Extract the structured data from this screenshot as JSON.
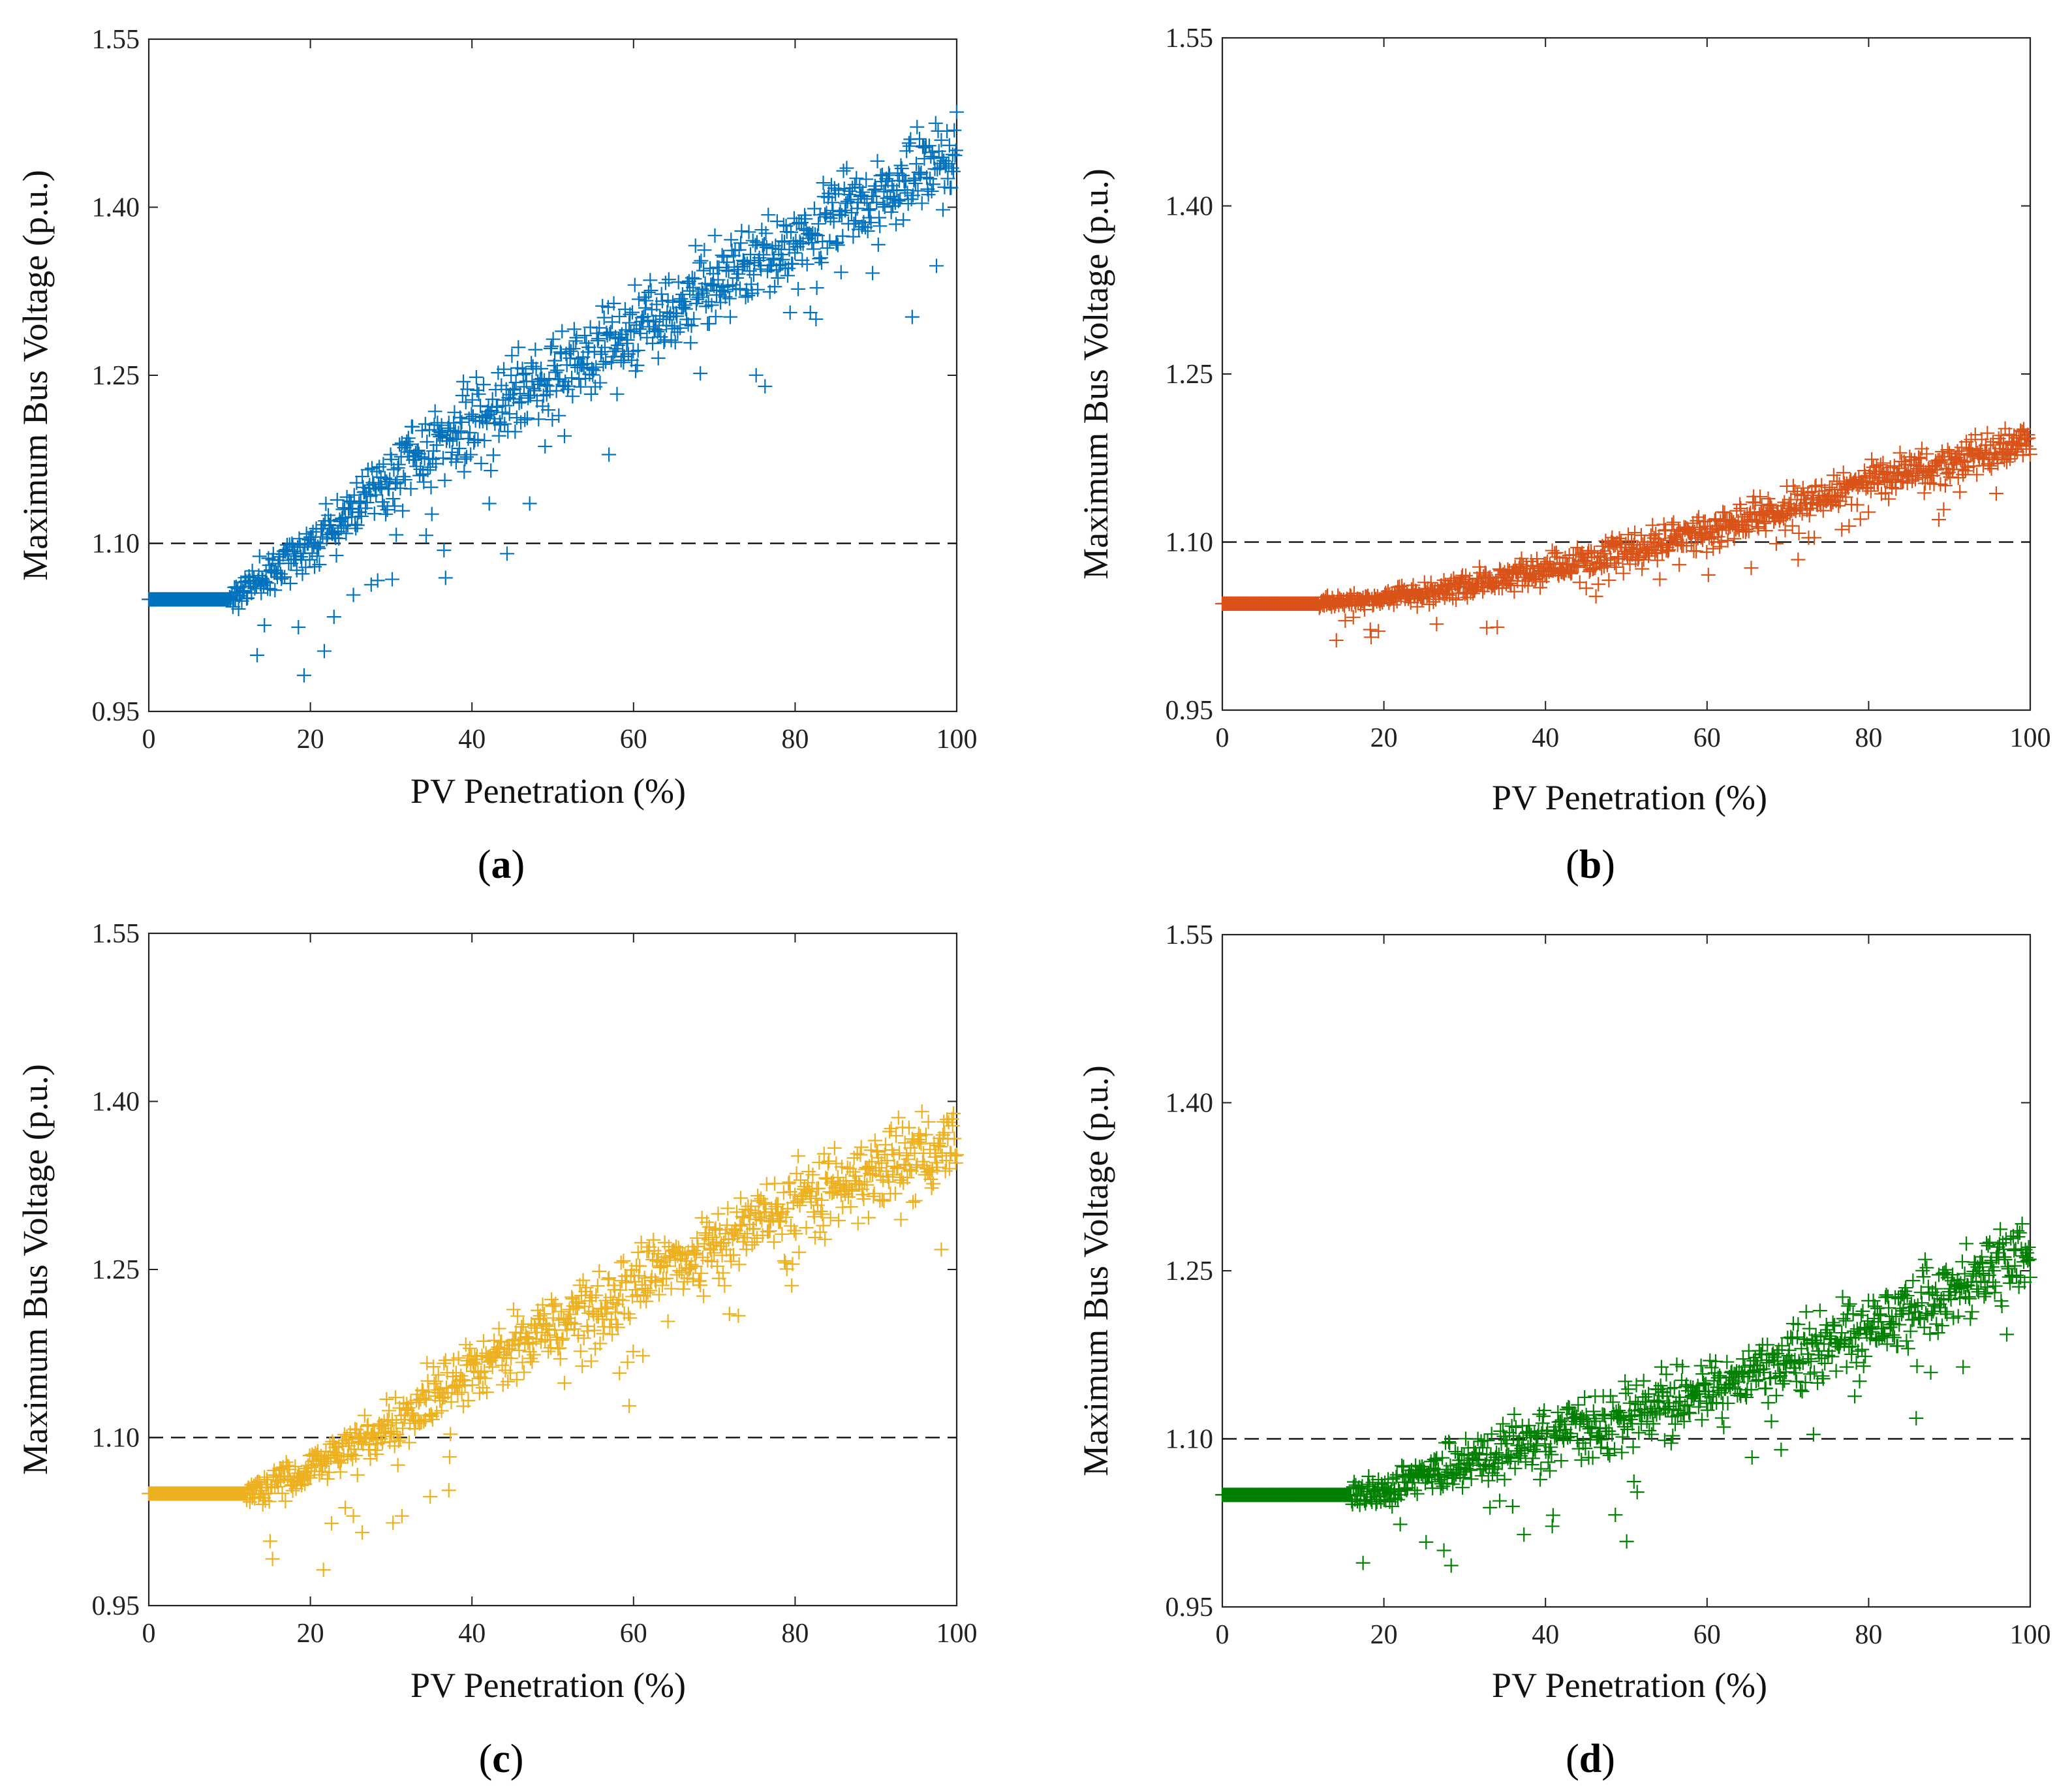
{
  "figure": {
    "panels": [
      "a",
      "b",
      "c",
      "d"
    ]
  },
  "chart_data": [
    {
      "id": "a",
      "type": "scatter",
      "caption_open": "(",
      "caption_letter": "a",
      "caption_close": ")",
      "xlabel": "PV Penetration (%)",
      "ylabel": "Maximum Bus Voltage (p.u.)",
      "xlim": [
        0,
        100
      ],
      "ylim": [
        0.95,
        1.55
      ],
      "xticks": [
        0,
        20,
        40,
        60,
        80,
        100
      ],
      "yticks": [
        0.95,
        1.1,
        1.25,
        1.4,
        1.55
      ],
      "xtick_labels": [
        "0",
        "20",
        "40",
        "60",
        "80",
        "100"
      ],
      "ytick_labels": [
        "0.95",
        "1.10",
        "1.25",
        "1.40",
        "1.55"
      ],
      "threshold": 1.1,
      "color": "#0072BD",
      "marker": "plus",
      "series_model": {
        "n_points": 1000,
        "base_voltage": 1.05,
        "onset_percent": 10,
        "points_at_100_percent": [
          1.39,
          1.5
        ],
        "mean_at_percent": [
          [
            10,
            1.05
          ],
          [
            20,
            1.1
          ],
          [
            30,
            1.16
          ],
          [
            40,
            1.21
          ],
          [
            50,
            1.25
          ],
          [
            60,
            1.29
          ],
          [
            70,
            1.33
          ],
          [
            80,
            1.37
          ],
          [
            90,
            1.41
          ],
          [
            100,
            1.45
          ]
        ],
        "spread": 0.035
      }
    },
    {
      "id": "b",
      "type": "scatter",
      "caption_open": "(",
      "caption_letter": "b",
      "caption_close": ")",
      "xlabel": "PV Penetration (%)",
      "ylabel": "Maximum Bus Voltage (p.u.)",
      "xlim": [
        0,
        100
      ],
      "ylim": [
        0.95,
        1.55
      ],
      "xticks": [
        0,
        20,
        40,
        60,
        80,
        100
      ],
      "yticks": [
        0.95,
        1.1,
        1.25,
        1.4,
        1.55
      ],
      "xtick_labels": [
        "0",
        "20",
        "40",
        "60",
        "80",
        "100"
      ],
      "ytick_labels": [
        "0.95",
        "1.10",
        "1.25",
        "1.40",
        "1.55"
      ],
      "threshold": 1.1,
      "color": "#D95319",
      "marker": "plus",
      "series_model": {
        "n_points": 1000,
        "base_voltage": 1.045,
        "onset_percent": 12,
        "mean_at_percent": [
          [
            12,
            1.045
          ],
          [
            20,
            1.05
          ],
          [
            30,
            1.06
          ],
          [
            40,
            1.075
          ],
          [
            50,
            1.095
          ],
          [
            60,
            1.11
          ],
          [
            70,
            1.13
          ],
          [
            80,
            1.155
          ],
          [
            90,
            1.17
          ],
          [
            100,
            1.19
          ]
        ],
        "spread": 0.014
      }
    },
    {
      "id": "c",
      "type": "scatter",
      "caption_open": "(",
      "caption_letter": "c",
      "caption_close": ")",
      "xlabel": "PV Penetration (%)",
      "ylabel": "Maximum Bus Voltage (p.u.)",
      "xlim": [
        0,
        100
      ],
      "ylim": [
        0.95,
        1.55
      ],
      "xticks": [
        0,
        20,
        40,
        60,
        80,
        100
      ],
      "yticks": [
        0.95,
        1.1,
        1.25,
        1.4,
        1.55
      ],
      "xtick_labels": [
        "0",
        "20",
        "40",
        "60",
        "80",
        "100"
      ],
      "ytick_labels": [
        "0.95",
        "1.10",
        "1.25",
        "1.40",
        "1.55"
      ],
      "threshold": 1.1,
      "color": "#EDB120",
      "marker": "plus",
      "series_model": {
        "n_points": 1000,
        "base_voltage": 1.05,
        "onset_percent": 12,
        "mean_at_percent": [
          [
            12,
            1.05
          ],
          [
            20,
            1.07
          ],
          [
            30,
            1.11
          ],
          [
            40,
            1.16
          ],
          [
            50,
            1.2
          ],
          [
            60,
            1.24
          ],
          [
            70,
            1.27
          ],
          [
            80,
            1.31
          ],
          [
            90,
            1.34
          ],
          [
            100,
            1.36
          ]
        ],
        "spread": 0.03
      }
    },
    {
      "id": "d",
      "type": "scatter",
      "caption_open": "(",
      "caption_letter": "d",
      "caption_close": ")",
      "xlabel": "PV Penetration (%)",
      "ylabel": "Maximum Bus Voltage (p.u.)",
      "xlim": [
        0,
        100
      ],
      "ylim": [
        0.95,
        1.55
      ],
      "xticks": [
        0,
        20,
        40,
        60,
        80,
        100
      ],
      "yticks": [
        0.95,
        1.1,
        1.25,
        1.4,
        1.55
      ],
      "xtick_labels": [
        "0",
        "20",
        "40",
        "60",
        "80",
        "100"
      ],
      "ytick_labels": [
        "0.95",
        "1.10",
        "1.25",
        "1.40",
        "1.55"
      ],
      "threshold": 1.1,
      "color": "#008000",
      "marker": "plus",
      "series_model": {
        "n_points": 1000,
        "base_voltage": 1.05,
        "onset_percent": 16,
        "mean_at_percent": [
          [
            16,
            1.05
          ],
          [
            20,
            1.055
          ],
          [
            30,
            1.08
          ],
          [
            40,
            1.1
          ],
          [
            50,
            1.12
          ],
          [
            60,
            1.145
          ],
          [
            70,
            1.17
          ],
          [
            80,
            1.2
          ],
          [
            90,
            1.23
          ],
          [
            100,
            1.26
          ]
        ],
        "spread": 0.028
      }
    }
  ]
}
